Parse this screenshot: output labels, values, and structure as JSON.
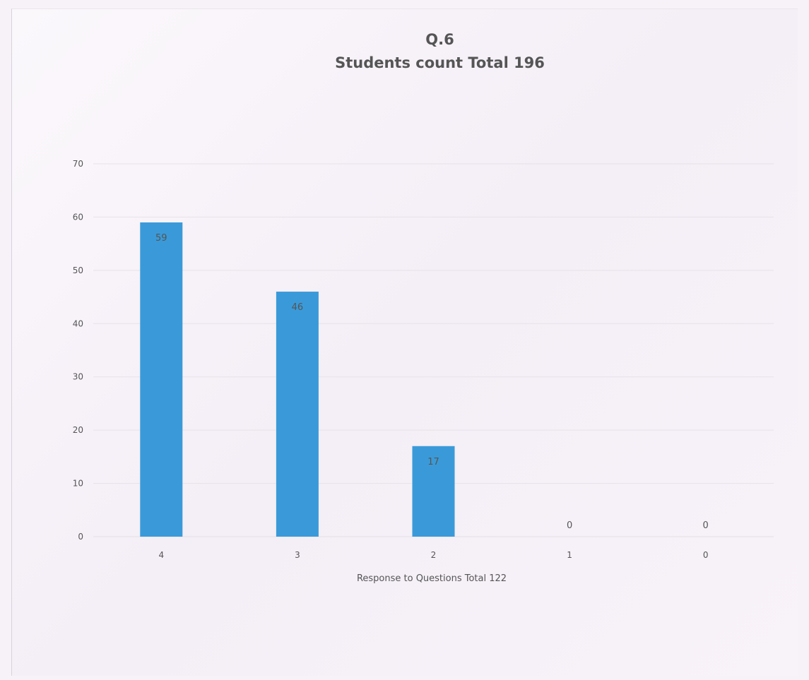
{
  "chart_data": {
    "type": "bar",
    "title": "Q.6",
    "subtitle": "Students count Total 196",
    "xlabel": "Response to Questions Total 122",
    "ylabel": "",
    "categories": [
      "4",
      "3",
      "2",
      "1",
      "0"
    ],
    "values": [
      59,
      46,
      17,
      0,
      0
    ],
    "data_labels": [
      "59",
      "46",
      "17",
      "0",
      "0"
    ],
    "yticks": [
      0,
      10,
      20,
      30,
      40,
      50,
      60,
      70
    ],
    "ylim": [
      0,
      70
    ],
    "grid": true,
    "legend": "none",
    "colors": {
      "bar": "#3a9ad9",
      "grid": "#e6e2e8",
      "text": "#555555"
    }
  }
}
